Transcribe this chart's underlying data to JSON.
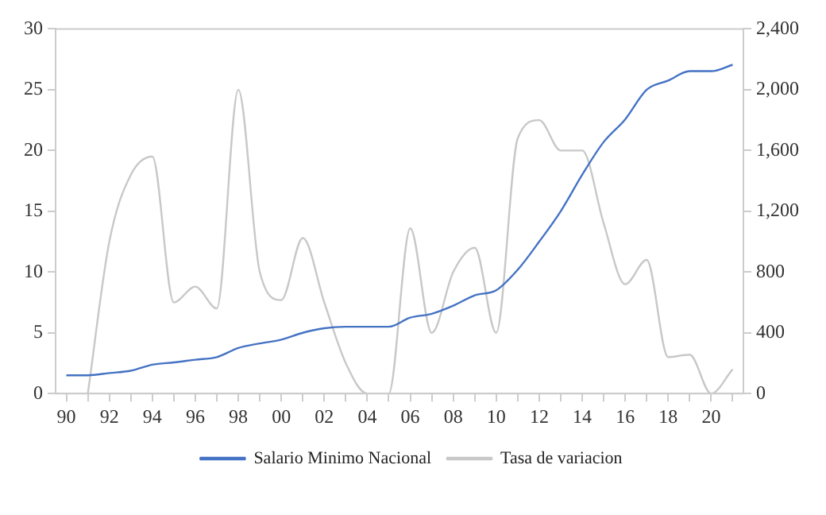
{
  "chart_data": {
    "type": "line",
    "x": [
      1990,
      1991,
      1992,
      1993,
      1994,
      1995,
      1996,
      1997,
      1998,
      1999,
      2000,
      2001,
      2002,
      2003,
      2004,
      2005,
      2006,
      2007,
      2008,
      2009,
      2010,
      2011,
      2012,
      2013,
      2014,
      2015,
      2016,
      2017,
      2018,
      2019,
      2020,
      2021
    ],
    "series": [
      {
        "name": "Salario Minimo Nacional",
        "color": "#4472c4",
        "axis": "y2",
        "values": [
          120,
          120,
          135,
          150,
          190,
          205,
          223,
          240,
          300,
          330,
          355,
          400,
          430,
          440,
          440,
          440,
          500,
          525,
          578,
          647,
          680,
          815,
          1000,
          1200,
          1440,
          1656,
          1805,
          2000,
          2060,
          2122,
          2122,
          2164
        ]
      },
      {
        "name": "Tasa de variacion",
        "color": "#c8c8c8",
        "values": [
          null,
          0,
          12.5,
          18,
          19.5,
          7.5,
          8.8,
          7,
          25,
          10,
          7.7,
          12.8,
          7.5,
          2.5,
          0,
          0,
          13.6,
          5,
          10,
          12,
          5,
          21,
          22.5,
          20,
          20,
          14,
          9,
          11,
          3,
          3.2,
          0,
          2
        ]
      }
    ],
    "xlim": [
      1989.5,
      2021.5
    ],
    "xticks": [
      {
        "value": 1990,
        "label": "90"
      },
      {
        "value": 1991,
        "label": null
      },
      {
        "value": 1992,
        "label": "92"
      },
      {
        "value": 1993,
        "label": null
      },
      {
        "value": 1994,
        "label": "94"
      },
      {
        "value": 1995,
        "label": null
      },
      {
        "value": 1996,
        "label": "96"
      },
      {
        "value": 1997,
        "label": null
      },
      {
        "value": 1998,
        "label": "98"
      },
      {
        "value": 1999,
        "label": null
      },
      {
        "value": 2000,
        "label": "00"
      },
      {
        "value": 2001,
        "label": null
      },
      {
        "value": 2002,
        "label": "02"
      },
      {
        "value": 2003,
        "label": null
      },
      {
        "value": 2004,
        "label": "04"
      },
      {
        "value": 2005,
        "label": null
      },
      {
        "value": 2006,
        "label": "06"
      },
      {
        "value": 2007,
        "label": null
      },
      {
        "value": 2008,
        "label": "08"
      },
      {
        "value": 2009,
        "label": null
      },
      {
        "value": 2010,
        "label": "10"
      },
      {
        "value": 2011,
        "label": null
      },
      {
        "value": 2012,
        "label": "12"
      },
      {
        "value": 2013,
        "label": null
      },
      {
        "value": 2014,
        "label": "14"
      },
      {
        "value": 2015,
        "label": null
      },
      {
        "value": 2016,
        "label": "16"
      },
      {
        "value": 2017,
        "label": null
      },
      {
        "value": 2018,
        "label": "18"
      },
      {
        "value": 2019,
        "label": null
      },
      {
        "value": 2020,
        "label": "20"
      },
      {
        "value": 2021,
        "label": null
      }
    ],
    "ylim": [
      0,
      30
    ],
    "yticks": [
      0,
      5,
      10,
      15,
      20,
      25,
      30
    ],
    "y2lim": [
      0,
      2400
    ],
    "y2ticks": [
      {
        "value": 0,
        "label": "0"
      },
      {
        "value": 400,
        "label": "400"
      },
      {
        "value": 800,
        "label": "800"
      },
      {
        "value": 1200,
        "label": "1,200"
      },
      {
        "value": 1600,
        "label": "1,600"
      },
      {
        "value": 2000,
        "label": "2,000"
      },
      {
        "value": 2400,
        "label": "2,400"
      }
    ],
    "grid": false,
    "legend": "bottom",
    "marker": "none",
    "line_style": "solid"
  }
}
